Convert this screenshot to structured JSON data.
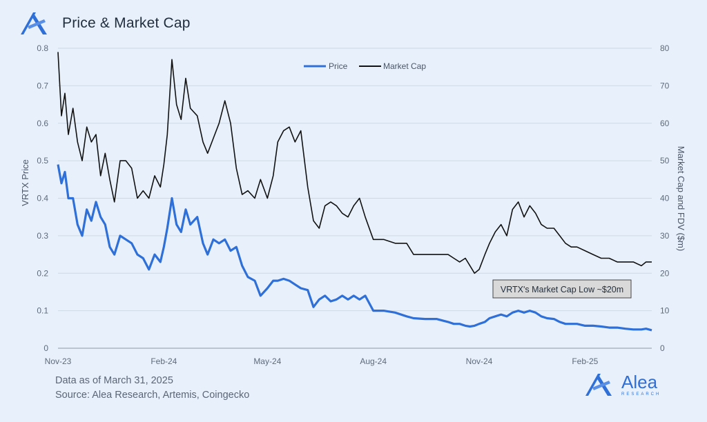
{
  "header": {
    "title": "Price & Market Cap",
    "logo_icon": "alea-logo-icon"
  },
  "footer": {
    "line1": "Data as of March 31, 2025",
    "line2": "Source: Alea Research, Artemis, Coingecko"
  },
  "brand": {
    "name": "Alea",
    "sub": "RESEARCH"
  },
  "colors": {
    "background": "#e8f1fb",
    "price": "#2f6fd8",
    "market_cap": "#111111",
    "grid": "#cdd8e4",
    "annotation_bg": "#d9d9d9"
  },
  "chart_data": {
    "type": "line",
    "title": "Price & Market Cap",
    "x": [
      "2023-11-01",
      "2023-11-04",
      "2023-11-07",
      "2023-11-10",
      "2023-11-14",
      "2023-11-18",
      "2023-11-22",
      "2023-11-26",
      "2023-11-30",
      "2023-12-04",
      "2023-12-08",
      "2023-12-12",
      "2023-12-16",
      "2023-12-20",
      "2023-12-25",
      "2023-12-30",
      "2024-01-04",
      "2024-01-09",
      "2024-01-14",
      "2024-01-19",
      "2024-01-24",
      "2024-01-29",
      "2024-02-01",
      "2024-02-04",
      "2024-02-08",
      "2024-02-12",
      "2024-02-16",
      "2024-02-20",
      "2024-02-24",
      "2024-03-01",
      "2024-03-06",
      "2024-03-10",
      "2024-03-15",
      "2024-03-20",
      "2024-03-25",
      "2024-03-30",
      "2024-04-04",
      "2024-04-09",
      "2024-04-14",
      "2024-04-20",
      "2024-04-25",
      "2024-05-01",
      "2024-05-06",
      "2024-05-10",
      "2024-05-15",
      "2024-05-20",
      "2024-05-25",
      "2024-05-30",
      "2024-06-05",
      "2024-06-10",
      "2024-06-15",
      "2024-06-20",
      "2024-06-25",
      "2024-06-30",
      "2024-07-05",
      "2024-07-10",
      "2024-07-15",
      "2024-07-20",
      "2024-07-25",
      "2024-08-01",
      "2024-08-10",
      "2024-08-20",
      "2024-08-30",
      "2024-09-05",
      "2024-09-15",
      "2024-09-25",
      "2024-10-05",
      "2024-10-10",
      "2024-10-15",
      "2024-10-20",
      "2024-10-24",
      "2024-10-28",
      "2024-11-01",
      "2024-11-06",
      "2024-11-10",
      "2024-11-15",
      "2024-11-20",
      "2024-11-25",
      "2024-11-30",
      "2024-12-05",
      "2024-12-10",
      "2024-12-15",
      "2024-12-20",
      "2024-12-25",
      "2024-12-30",
      "2025-01-05",
      "2025-01-10",
      "2025-01-15",
      "2025-01-20",
      "2025-01-25",
      "2025-02-01",
      "2025-02-08",
      "2025-02-15",
      "2025-02-22",
      "2025-03-01",
      "2025-03-08",
      "2025-03-15",
      "2025-03-22",
      "2025-03-26",
      "2025-03-31"
    ],
    "x_ticks": [
      "Nov-23",
      "Feb-24",
      "May-24",
      "Aug-24",
      "Nov-24",
      "Feb-25"
    ],
    "xlabel": "",
    "ylabel": "VRTX Price",
    "ylabel_right": "Market Cap and FDV ($m)",
    "ylim": [
      0,
      0.8
    ],
    "ylim_right": [
      0,
      80
    ],
    "y_ticks": [
      "0",
      "0.1",
      "0.2",
      "0.3",
      "0.4",
      "0.5",
      "0.6",
      "0.7",
      "0.8"
    ],
    "y_ticks_right": [
      "0",
      "10",
      "20",
      "30",
      "40",
      "50",
      "60",
      "70",
      "80"
    ],
    "grid": true,
    "legend": "top-center",
    "series": [
      {
        "name": "Price",
        "axis": "left",
        "color": "#2f6fd8",
        "values": [
          0.49,
          0.44,
          0.47,
          0.4,
          0.4,
          0.33,
          0.3,
          0.37,
          0.34,
          0.39,
          0.35,
          0.33,
          0.27,
          0.25,
          0.3,
          0.29,
          0.28,
          0.25,
          0.24,
          0.21,
          0.25,
          0.23,
          0.27,
          0.32,
          0.4,
          0.33,
          0.31,
          0.37,
          0.33,
          0.35,
          0.28,
          0.25,
          0.29,
          0.28,
          0.29,
          0.26,
          0.27,
          0.22,
          0.19,
          0.18,
          0.14,
          0.16,
          0.18,
          0.18,
          0.185,
          0.18,
          0.17,
          0.16,
          0.155,
          0.11,
          0.13,
          0.14,
          0.125,
          0.13,
          0.14,
          0.13,
          0.14,
          0.13,
          0.14,
          0.1,
          0.1,
          0.095,
          0.085,
          0.08,
          0.078,
          0.078,
          0.07,
          0.065,
          0.065,
          0.06,
          0.058,
          0.06,
          0.065,
          0.07,
          0.08,
          0.085,
          0.09,
          0.085,
          0.095,
          0.1,
          0.095,
          0.1,
          0.095,
          0.085,
          0.08,
          0.078,
          0.07,
          0.065,
          0.065,
          0.065,
          0.06,
          0.06,
          0.058,
          0.055,
          0.055,
          0.052,
          0.05,
          0.05,
          0.052,
          0.048
        ]
      },
      {
        "name": "Market Cap",
        "axis": "right",
        "color": "#111111",
        "values": [
          79,
          62,
          68,
          57,
          64,
          55,
          50,
          59,
          55,
          57,
          46,
          52,
          45,
          39,
          50,
          50,
          48,
          40,
          42,
          40,
          46,
          43,
          49,
          57,
          77,
          65,
          61,
          72,
          64,
          62,
          55,
          52,
          56,
          60,
          66,
          60,
          48,
          41,
          42,
          40,
          45,
          40,
          46,
          55,
          58,
          59,
          55,
          58,
          43,
          34,
          32,
          38,
          39,
          38,
          36,
          35,
          38,
          40,
          35,
          29,
          29,
          28,
          28,
          25,
          25,
          25,
          25,
          24,
          23,
          24,
          22,
          20,
          21,
          25,
          28,
          31,
          33,
          30,
          37,
          39,
          35,
          38,
          36,
          33,
          32,
          32,
          30,
          28,
          27,
          27,
          26,
          25,
          24,
          24,
          23,
          23,
          23,
          22,
          23,
          23
        ]
      }
    ],
    "annotations": [
      {
        "text": "VRTX's Market Cap Low ~$20m"
      }
    ]
  }
}
